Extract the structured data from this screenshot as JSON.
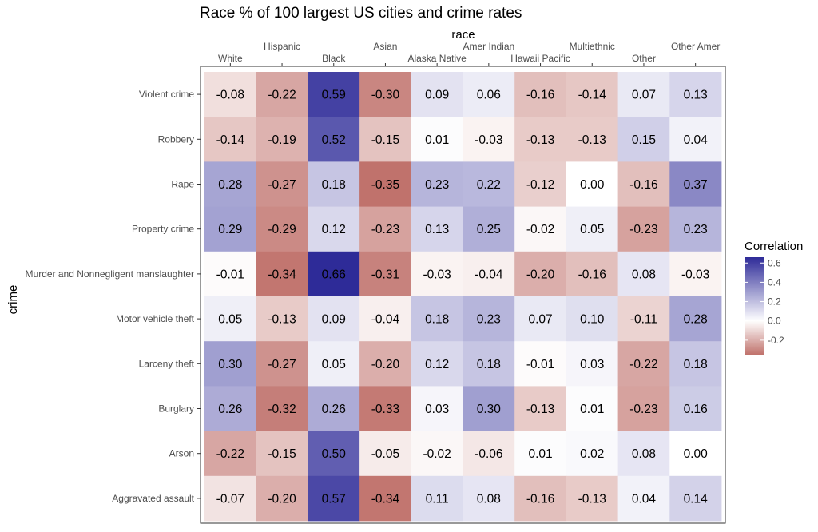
{
  "chart_data": {
    "type": "heatmap",
    "title": "Race % of 100 largest US cities and crime rates",
    "xlabel": "race",
    "ylabel": "crime",
    "x_axis_position": "top",
    "columns": [
      "White",
      "Hispanic",
      "Black",
      "Asian",
      "Alaska Native",
      "Amer Indian",
      "Hawaii Pacific",
      "Multiethnic",
      "Other",
      "Other Amer"
    ],
    "rows": [
      "Violent crime",
      "Robbery",
      "Rape",
      "Property crime",
      "Murder and Nonnegligent manslaughter",
      "Motor vehicle theft",
      "Larceny theft",
      "Burglary",
      "Arson",
      "Aggravated assault"
    ],
    "values": [
      [
        -0.08,
        -0.22,
        0.59,
        -0.3,
        0.09,
        0.06,
        -0.16,
        -0.14,
        0.07,
        0.13
      ],
      [
        -0.14,
        -0.19,
        0.52,
        -0.15,
        0.01,
        -0.03,
        -0.13,
        -0.13,
        0.15,
        0.04
      ],
      [
        0.28,
        -0.27,
        0.18,
        -0.35,
        0.23,
        0.22,
        -0.12,
        0.0,
        -0.16,
        0.37
      ],
      [
        0.29,
        -0.29,
        0.12,
        -0.23,
        0.13,
        0.25,
        -0.02,
        0.05,
        -0.23,
        0.23
      ],
      [
        -0.01,
        -0.34,
        0.66,
        -0.31,
        -0.03,
        -0.04,
        -0.2,
        -0.16,
        0.08,
        -0.03
      ],
      [
        0.05,
        -0.13,
        0.09,
        -0.04,
        0.18,
        0.23,
        0.07,
        0.1,
        -0.11,
        0.28
      ],
      [
        0.3,
        -0.27,
        0.05,
        -0.2,
        0.12,
        0.18,
        -0.01,
        0.03,
        -0.22,
        0.18
      ],
      [
        0.26,
        -0.32,
        0.26,
        -0.33,
        0.03,
        0.3,
        -0.13,
        0.01,
        -0.23,
        0.16
      ],
      [
        -0.22,
        -0.15,
        0.5,
        -0.05,
        -0.02,
        -0.06,
        0.01,
        0.02,
        0.08,
        0.0
      ],
      [
        -0.07,
        -0.2,
        0.57,
        -0.34,
        0.11,
        0.08,
        -0.16,
        -0.13,
        0.04,
        0.14
      ]
    ],
    "legend": {
      "title": "Correlation",
      "position": "right",
      "ticks": [
        0.6,
        0.4,
        0.2,
        0.0,
        -0.2
      ],
      "tick_labels": [
        "0.6",
        "0.4",
        "0.2",
        "0.0",
        "-0.2"
      ],
      "range": [
        -0.35,
        0.66
      ]
    },
    "colors": {
      "low": "#c0726c",
      "mid": "#ffffff",
      "high": "#2e2b98",
      "panel_border": "#333333",
      "tick": "#333333"
    },
    "grid": false
  }
}
